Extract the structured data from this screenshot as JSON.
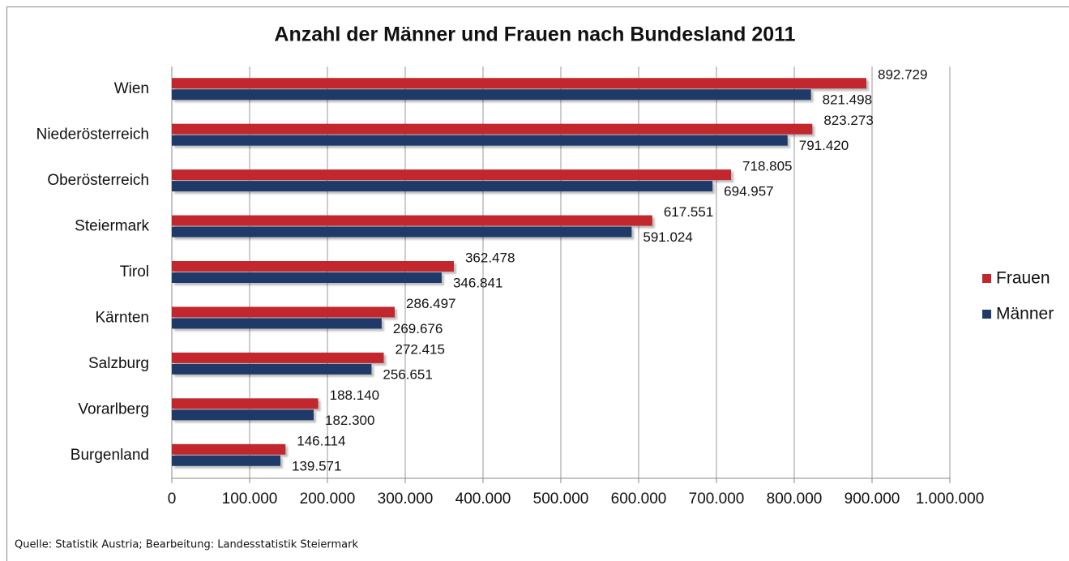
{
  "chart_data": {
    "type": "barh",
    "title": "Anzahl der Männer und Frauen nach Bundesland 2011",
    "categories": [
      "Wien",
      "Niederösterreich",
      "Oberösterreich",
      "Steiermark",
      "Tirol",
      "Kärnten",
      "Salzburg",
      "Vorarlberg",
      "Burgenland"
    ],
    "series": [
      {
        "name": "Frauen",
        "color": "#c1272d",
        "values": [
          892729,
          823273,
          718805,
          617551,
          362478,
          286497,
          272415,
          188140,
          146114
        ],
        "value_labels": [
          "892.729",
          "823.273",
          "718.805",
          "617.551",
          "362.478",
          "286.497",
          "272.415",
          "188.140",
          "146.114"
        ]
      },
      {
        "name": "Männer",
        "color": "#1f3a68",
        "values": [
          821498,
          791420,
          694957,
          591024,
          346841,
          269676,
          256651,
          182300,
          139571
        ],
        "value_labels": [
          "821.498",
          "791.420",
          "694.957",
          "591.024",
          "346.841",
          "269.676",
          "256.651",
          "182.300",
          "139.571"
        ]
      }
    ],
    "xlim": [
      0,
      1000000
    ],
    "xticks": [
      0,
      {
        "value": 100000,
        "label": "100.000"
      },
      {
        "value": 200000,
        "label": "200.000"
      },
      {
        "value": 300000,
        "label": "300.000"
      },
      {
        "value": 400000,
        "label": "400.000"
      },
      {
        "value": 500000,
        "label": "500.000"
      },
      {
        "value": 600000,
        "label": "600.000"
      },
      {
        "value": 700000,
        "label": "700.000"
      },
      {
        "value": 800000,
        "label": "800.000"
      },
      {
        "value": 900000,
        "label": "900.000"
      },
      {
        "value": 1000000,
        "label": "1.000.000"
      }
    ],
    "grid": true,
    "legend": "right",
    "source": "Quelle: Statistik Austria; Bearbeitung: Landesstatistik Steiermark"
  }
}
